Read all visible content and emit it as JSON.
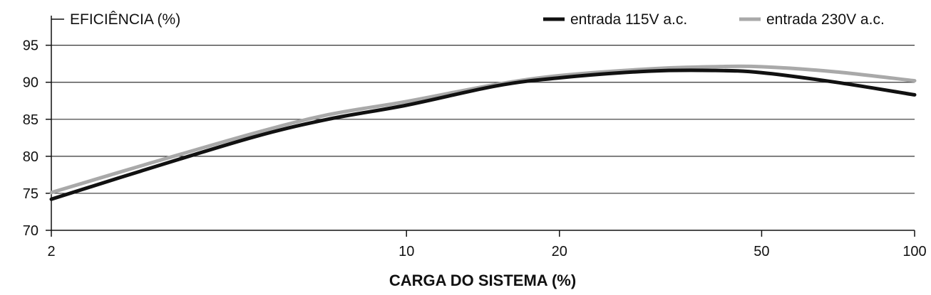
{
  "chart_data": {
    "type": "line",
    "ylabel": "EFICIÊNCIA (%)",
    "xlabel": "CARGA DO SISTEMA (%)",
    "x_scale": "log",
    "xlim": [
      2,
      100
    ],
    "ylim": [
      70,
      99
    ],
    "x_ticks": [
      2,
      10,
      20,
      50,
      100
    ],
    "y_ticks": [
      70,
      75,
      80,
      85,
      90,
      95
    ],
    "grid": "horizontal",
    "legend_position": "top-right",
    "series": [
      {
        "name": "entrada 115V a.c.",
        "color": "#111111",
        "x": [
          2,
          3,
          5,
          7,
          10,
          15,
          20,
          30,
          40,
          50,
          70,
          100
        ],
        "y": [
          74.2,
          78.0,
          82.6,
          85.0,
          86.9,
          89.5,
          90.6,
          91.5,
          91.6,
          91.3,
          90.0,
          88.3
        ]
      },
      {
        "name": "entrada 230V a.c.",
        "color": "#a9a9a9",
        "x": [
          2,
          3,
          5,
          7,
          10,
          15,
          20,
          30,
          40,
          50,
          70,
          100
        ],
        "y": [
          75.1,
          78.7,
          83.1,
          85.6,
          87.4,
          89.7,
          90.9,
          91.8,
          92.1,
          92.1,
          91.4,
          90.2
        ]
      }
    ]
  }
}
